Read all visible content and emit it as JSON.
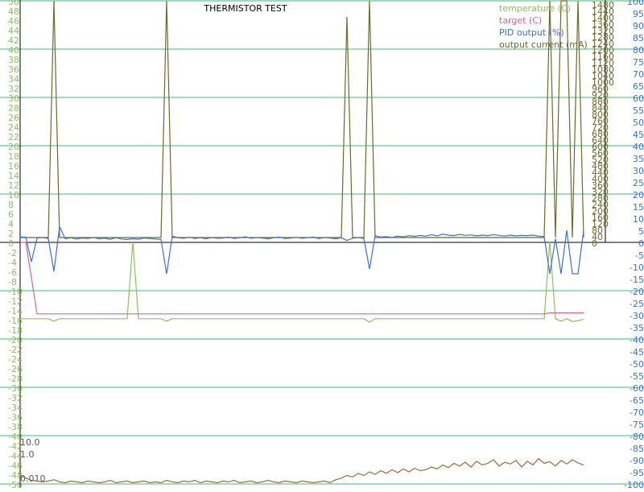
{
  "chart_data": {
    "type": "line",
    "title": "THERMISTOR TEST",
    "legend": "upper right",
    "grid_color": "#3cb878",
    "ylim": [
      -50,
      50
    ],
    "yticks": [
      -50,
      -48,
      -46,
      -44,
      -42,
      -40,
      -38,
      -36,
      -34,
      -32,
      -30,
      -28,
      -26,
      -24,
      -22,
      -20,
      -18,
      -16,
      -14,
      -12,
      -10,
      -8,
      -6,
      -4,
      -2,
      0,
      2,
      4,
      6,
      8,
      10,
      12,
      14,
      16,
      18,
      20,
      22,
      24,
      26,
      28,
      30,
      32,
      34,
      36,
      38,
      40,
      42,
      44,
      46,
      48,
      50
    ],
    "ygrid": [
      -50,
      -40,
      -30,
      -20,
      -10,
      0,
      10,
      20,
      30,
      40,
      50
    ],
    "y2lim": [
      -100,
      100
    ],
    "y2ticks": [
      -100,
      -95,
      -90,
      -85,
      -80,
      -75,
      -70,
      -65,
      -60,
      -55,
      -50,
      -45,
      -40,
      -35,
      -30,
      -25,
      -20,
      -15,
      -10,
      -5,
      0,
      5,
      10,
      15,
      20,
      25,
      30,
      35,
      40,
      45,
      50,
      55,
      60,
      65,
      70,
      75,
      80,
      85,
      90,
      95,
      100
    ],
    "y3lim": [
      -1500,
      1500
    ],
    "y3ticks": [
      0,
      40,
      80,
      120,
      160,
      200,
      240,
      280,
      320,
      360,
      400,
      440,
      480,
      520,
      560,
      600,
      640,
      680,
      720,
      760,
      800,
      840,
      880,
      920,
      960,
      1000,
      1040,
      1080,
      1120,
      1160,
      1200,
      1240,
      1280,
      1320,
      1360,
      1400,
      1440,
      1480
    ],
    "y4lim": [
      0.004,
      10
    ],
    "y4log": true,
    "y4ticks": [
      {
        "value": 10,
        "label": "10.0"
      },
      {
        "value": 1,
        "label": "1.0"
      },
      {
        "value": 0.01,
        "label": "0.010"
      }
    ],
    "series": [
      {
        "name": "temperature (C)",
        "color": "#8fbf5f",
        "axis": "y",
        "values": [
          -15.8,
          -15.8,
          -15.8,
          -15.8,
          -15.8,
          -15.8,
          -16.3,
          -15.8,
          -15.8,
          -15.8,
          -15.8,
          -15.8,
          -15.8,
          -15.8,
          -15.8,
          -15.8,
          -15.8,
          -15.8,
          -15.8,
          -15.8,
          0.2,
          -15.8,
          -15.8,
          -15.8,
          -15.8,
          -15.8,
          -16.3,
          -15.8,
          -15.8,
          -15.8,
          -15.8,
          -15.8,
          -15.8,
          -15.8,
          -15.8,
          -15.8,
          -15.8,
          -15.8,
          -15.8,
          -15.8,
          -15.8,
          -15.8,
          -15.8,
          -15.8,
          -15.8,
          -15.8,
          -15.8,
          -15.8,
          -15.8,
          -15.8,
          -15.8,
          -15.8,
          -15.8,
          -15.8,
          -15.8,
          -15.8,
          -15.8,
          -15.8,
          -15.8,
          -15.8,
          -15.8,
          -15.8,
          -16.5,
          -15.8,
          -15.8,
          -15.8,
          -15.8,
          -15.8,
          -15.8,
          -15.8,
          -15.8,
          -15.8,
          -15.8,
          -15.8,
          -15.8,
          -15.8,
          -15.8,
          -15.8,
          -15.8,
          -15.8,
          -15.8,
          -15.8,
          -15.8,
          -15.8,
          -15.8,
          -15.8,
          -15.8,
          -15.8,
          -15.8,
          -15.8,
          -15.8,
          -15.8,
          -15.8,
          -15.8,
          0.2,
          -15.8,
          -16.3,
          -15.8,
          -16.4,
          -16.2,
          -15.9
        ]
      },
      {
        "name": "target (C)",
        "color": "#e0609a",
        "axis": "y",
        "values": [
          0,
          0,
          -7.3,
          -14.8,
          -14.8,
          -14.8,
          -14.8,
          -14.8,
          -14.8,
          -14.8,
          -14.8,
          -14.8,
          -14.8,
          -14.8,
          -14.8,
          -14.8,
          -14.8,
          -14.8,
          -14.8,
          -14.8,
          -14.8,
          -14.8,
          -14.8,
          -14.8,
          -14.8,
          -14.8,
          -14.8,
          -14.8,
          -14.8,
          -14.8,
          -14.8,
          -14.8,
          -14.8,
          -14.8,
          -14.8,
          -14.8,
          -14.8,
          -14.8,
          -14.8,
          -14.8,
          -14.8,
          -14.8,
          -14.8,
          -14.8,
          -14.8,
          -14.8,
          -14.8,
          -14.8,
          -14.8,
          -14.8,
          -14.8,
          -14.8,
          -14.8,
          -14.8,
          -14.8,
          -14.8,
          -14.8,
          -14.8,
          -14.8,
          -14.8,
          -14.8,
          -14.8,
          -14.8,
          -14.8,
          -14.8,
          -14.8,
          -14.8,
          -14.8,
          -14.8,
          -14.8,
          -14.8,
          -14.8,
          -14.8,
          -14.8,
          -14.8,
          -14.8,
          -14.8,
          -14.8,
          -14.8,
          -14.8,
          -14.8,
          -14.8,
          -14.8,
          -14.8,
          -14.8,
          -14.8,
          -14.8,
          -14.8,
          -14.8,
          -14.8,
          -14.8,
          -14.8,
          -14.8,
          -14.8,
          -14.6,
          -14.6,
          -14.6,
          -14.6,
          -14.6,
          -14.6,
          -14.6
        ]
      },
      {
        "name": "PID output (%)",
        "color": "#3b6fdc",
        "axis": "y2",
        "values": [
          2.3,
          2.1,
          -8,
          1.8,
          2.0,
          1.6,
          -12,
          6.5,
          1.5,
          1.9,
          1.4,
          1.8,
          1.6,
          2.0,
          1.5,
          1.7,
          1.3,
          1.9,
          1.4,
          1.2,
          1.5,
          1.3,
          1.8,
          1.6,
          1.4,
          1.2,
          -13,
          2.6,
          1.9,
          1.7,
          2.1,
          1.6,
          1.9,
          1.5,
          2.0,
          1.7,
          1.8,
          2.2,
          1.6,
          1.9,
          2.3,
          1.7,
          2.0,
          1.8,
          1.5,
          1.9,
          2.2,
          1.6,
          1.8,
          2.1,
          1.7,
          1.9,
          2.2,
          1.6,
          2.0,
          1.8,
          1.5,
          1.9,
          0.8,
          1.7,
          2.0,
          1.6,
          -11,
          2.8,
          2.2,
          2.4,
          2.0,
          2.6,
          2.3,
          2.8,
          2.5,
          2.9,
          2.6,
          3.2,
          2.7,
          3.4,
          3.0,
          2.8,
          3.3,
          2.9,
          3.1,
          2.7,
          3.0,
          2.8,
          3.2,
          2.9,
          2.6,
          3.0,
          2.7,
          2.9,
          2.8,
          3.0,
          2.6,
          2.4,
          -13,
          1.5,
          -13,
          5,
          -13,
          -13,
          5
        ]
      },
      {
        "name": "output current (mA)",
        "color": "#6b6b2a",
        "axis": "y3",
        "values": [
          30,
          30,
          30,
          30,
          30,
          30,
          1500,
          30,
          30,
          30,
          30,
          30,
          30,
          30,
          30,
          30,
          30,
          30,
          30,
          30,
          30,
          30,
          30,
          30,
          30,
          30,
          1500,
          30,
          30,
          30,
          30,
          30,
          30,
          30,
          30,
          30,
          30,
          30,
          30,
          30,
          30,
          30,
          30,
          30,
          30,
          30,
          30,
          30,
          30,
          30,
          30,
          30,
          30,
          30,
          30,
          30,
          30,
          30,
          1400,
          30,
          30,
          30,
          1500,
          30,
          30,
          30,
          30,
          30,
          30,
          30,
          30,
          30,
          30,
          30,
          30,
          30,
          30,
          30,
          30,
          30,
          30,
          30,
          30,
          30,
          30,
          30,
          30,
          30,
          30,
          30,
          30,
          30,
          30,
          30,
          1500,
          30,
          1500,
          1500,
          30,
          1500,
          30
        ]
      },
      {
        "color": "#9a6a3a",
        "axis": "y4",
        "values": [
          0.02,
          0.012,
          0.008,
          0.007,
          0.006,
          0.007,
          0.009,
          0.006,
          0.005,
          0.007,
          0.006,
          0.005,
          0.007,
          0.006,
          0.005,
          0.006,
          0.008,
          0.005,
          0.006,
          0.007,
          0.005,
          0.006,
          0.007,
          0.005,
          0.006,
          0.005,
          0.008,
          0.006,
          0.005,
          0.007,
          0.006,
          0.008,
          0.005,
          0.007,
          0.006,
          0.005,
          0.007,
          0.006,
          0.008,
          0.005,
          0.006,
          0.007,
          0.005,
          0.006,
          0.008,
          0.006,
          0.005,
          0.007,
          0.006,
          0.005,
          0.007,
          0.006,
          0.005,
          0.006,
          0.007,
          0.005,
          0.009,
          0.012,
          0.02,
          0.015,
          0.03,
          0.02,
          0.04,
          0.025,
          0.05,
          0.03,
          0.06,
          0.035,
          0.07,
          0.04,
          0.08,
          0.05,
          0.06,
          0.1,
          0.07,
          0.15,
          0.09,
          0.2,
          0.12,
          0.25,
          0.1,
          0.3,
          0.15,
          0.2,
          0.4,
          0.12,
          0.25,
          0.18,
          0.35,
          0.1,
          0.3,
          0.15,
          0.5,
          0.2,
          0.28,
          0.12,
          0.35,
          0.18,
          0.4,
          0.22,
          0.15
        ]
      }
    ]
  }
}
